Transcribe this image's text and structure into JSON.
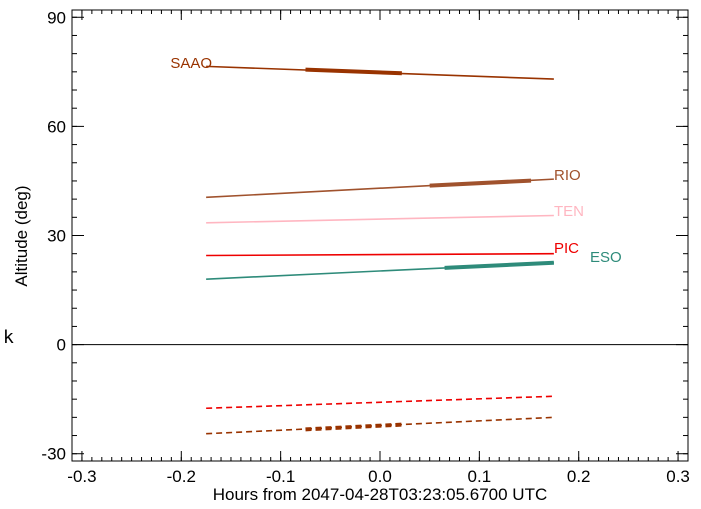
{
  "chart_data": {
    "type": "line",
    "title": "",
    "xlabel": "Hours from 2047-04-28T03:23:05.6700 UTC",
    "ylabel": "Altitude (deg)",
    "xlim": [
      -0.31,
      0.31
    ],
    "ylim": [
      -32,
      92
    ],
    "x_ticks": [
      -0.3,
      -0.2,
      -0.1,
      0.0,
      0.1,
      0.2,
      0.3
    ],
    "x_tick_labels": [
      "-0.3",
      "-0.2",
      "-0.1",
      "0.0",
      "0.1",
      "0.2",
      "0.3"
    ],
    "y_ticks": [
      -30,
      0,
      30,
      60,
      90
    ],
    "y_tick_labels": [
      "-30",
      "0",
      "30",
      "60",
      "90"
    ],
    "x_minor_step": 0.01,
    "y_minor_step": 5,
    "zero_line": true,
    "grid": false,
    "series": [
      {
        "name": "SAAO",
        "color": "#993300",
        "style": "solid",
        "x": [
          -0.175,
          0.175
        ],
        "y": [
          76.5,
          73.0
        ],
        "highlight": {
          "x": [
            -0.075,
            0.022
          ],
          "y": [
            75.6,
            74.6
          ]
        }
      },
      {
        "name": "RIO",
        "color": "#a0522d",
        "style": "solid",
        "x": [
          -0.175,
          0.175
        ],
        "y": [
          40.5,
          45.5
        ],
        "highlight": {
          "x": [
            0.05,
            0.152
          ],
          "y": [
            43.7,
            45.1
          ]
        }
      },
      {
        "name": "TEN",
        "color": "#ffb6c1",
        "style": "solid",
        "x": [
          -0.175,
          0.175
        ],
        "y": [
          33.5,
          35.5
        ]
      },
      {
        "name": "PIC",
        "color": "#ee0000",
        "style": "solid",
        "x": [
          -0.175,
          0.175
        ],
        "y": [
          24.5,
          25.0
        ]
      },
      {
        "name": "ESO",
        "color": "#2e8b7a",
        "style": "solid",
        "x": [
          -0.175,
          0.175
        ],
        "y": [
          18.0,
          22.5
        ],
        "highlight": {
          "x": [
            0.065,
            0.175
          ],
          "y": [
            21.1,
            22.5
          ]
        }
      },
      {
        "name": "",
        "color": "#ee0000",
        "style": "dashed",
        "x": [
          -0.175,
          0.175
        ],
        "y": [
          -17.5,
          -14.2
        ]
      },
      {
        "name": "",
        "color": "#993300",
        "style": "dashed",
        "x": [
          -0.175,
          0.175
        ],
        "y": [
          -24.5,
          -20.0
        ],
        "highlight": {
          "x": [
            -0.075,
            0.022
          ],
          "y": [
            -23.3,
            -22.0
          ]
        }
      }
    ]
  },
  "stray_text": "k"
}
